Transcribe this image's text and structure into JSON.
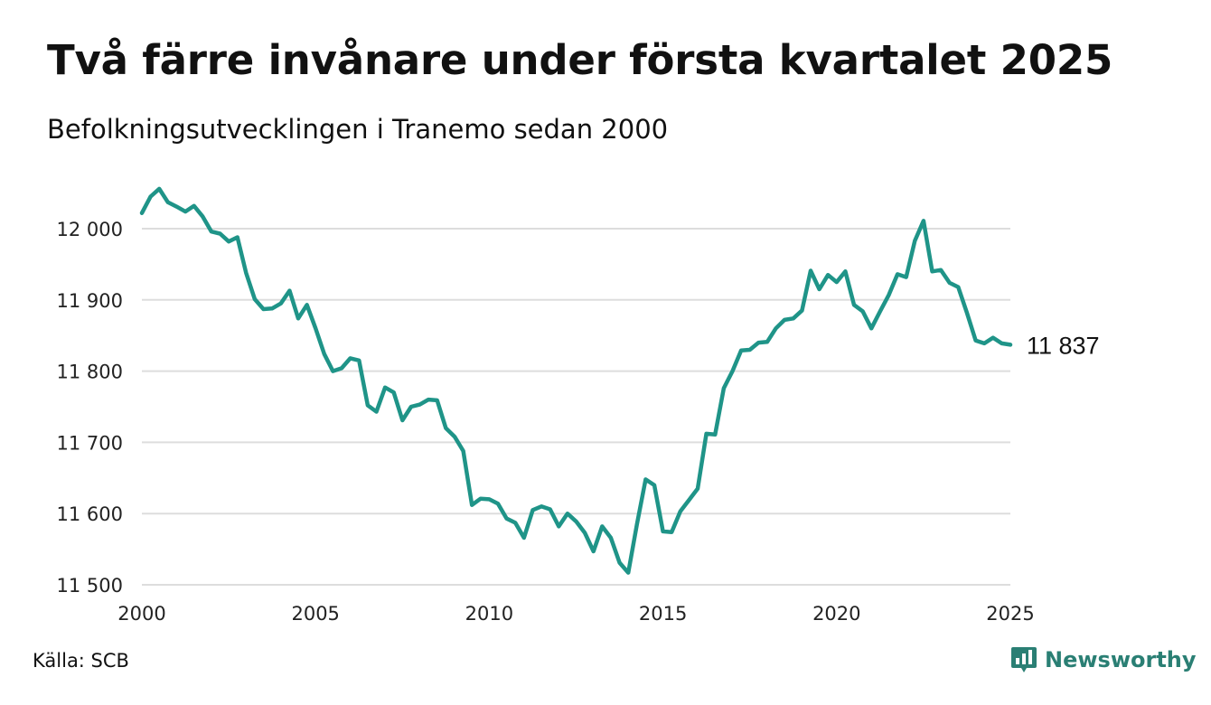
{
  "header": {
    "title": "Två färre invånare under första kvartalet 2025",
    "subtitle": "Befolkningsutvecklingen i Tranemo sedan 2000"
  },
  "footer": {
    "source": "Källa: SCB",
    "brand": "Newsworthy",
    "brand_icon": "bar-chart-speech-bubble-icon"
  },
  "colors": {
    "line": "#1f9488",
    "grid": "#dddddd",
    "brand": "#2a7f74"
  },
  "chart_data": {
    "type": "line",
    "title": "Två färre invånare under första kvartalet 2025",
    "subtitle": "Befolkningsutvecklingen i Tranemo sedan 2000",
    "xlabel": "",
    "ylabel": "",
    "xlim": [
      2000,
      2025
    ],
    "ylim": [
      11500,
      12050
    ],
    "grid": true,
    "legend": "none",
    "x_ticks": [
      2000,
      2005,
      2010,
      2015,
      2020,
      2025
    ],
    "x_tick_labels": [
      "2000",
      "2005",
      "2010",
      "2015",
      "2020",
      "2025"
    ],
    "y_ticks": [
      11500,
      11600,
      11700,
      11800,
      11900,
      12000
    ],
    "y_tick_labels": [
      "11 500",
      "11 600",
      "11 700",
      "11 800",
      "11 900",
      "12 000"
    ],
    "end_label": "11 837",
    "series": [
      {
        "x": [
          2000.0,
          2000.25,
          2000.5,
          2000.75,
          2001.0,
          2001.25,
          2001.5,
          2001.75,
          2002.0,
          2002.25,
          2002.5,
          2002.75,
          2003.0,
          2003.25,
          2003.5,
          2003.75,
          2004.0,
          2004.25,
          2004.5,
          2004.75,
          2005.0,
          2005.25,
          2005.5,
          2005.75,
          2006.0,
          2006.25,
          2006.5,
          2006.75,
          2007.0,
          2007.25,
          2007.5,
          2007.75,
          2008.0,
          2008.25,
          2008.5,
          2008.75,
          2009.0,
          2009.25,
          2009.5,
          2009.75,
          2010.0,
          2010.25,
          2010.5,
          2010.75,
          2011.0,
          2011.25,
          2011.5,
          2011.75,
          2012.0,
          2012.25,
          2012.5,
          2012.75,
          2013.0,
          2013.25,
          2013.5,
          2013.75,
          2014.0,
          2014.25,
          2014.5,
          2014.75,
          2015.0,
          2015.25,
          2015.5,
          2015.75,
          2016.0,
          2016.25,
          2016.5,
          2016.75,
          2017.0,
          2017.25,
          2017.5,
          2017.75,
          2018.0,
          2018.25,
          2018.5,
          2018.75,
          2019.0,
          2019.25,
          2019.5,
          2019.75,
          2020.0,
          2020.25,
          2020.5,
          2020.75,
          2021.0,
          2021.25,
          2021.5,
          2021.75,
          2022.0,
          2022.25,
          2022.5,
          2022.75,
          2023.0,
          2023.25,
          2023.5,
          2023.75,
          2024.0,
          2024.25,
          2024.5,
          2024.75,
          2025.0
        ],
        "values": [
          12022,
          12045,
          12056,
          12037,
          12031,
          12024,
          12032,
          12017,
          11996,
          11993,
          11982,
          11988,
          11938,
          11901,
          11887,
          11888,
          11895,
          11913,
          11874,
          11893,
          11860,
          11824,
          11800,
          11804,
          11818,
          11815,
          11752,
          11743,
          11777,
          11770,
          11731,
          11750,
          11753,
          11760,
          11759,
          11720,
          11708,
          11688,
          11612,
          11621,
          11620,
          11614,
          11593,
          11587,
          11566,
          11605,
          11610,
          11606,
          11582,
          11600,
          11589,
          11573,
          11547,
          11582,
          11566,
          11531,
          11517,
          11585,
          11648,
          11640,
          11575,
          11574,
          11603,
          11619,
          11635,
          11712,
          11711,
          11776,
          11800,
          11829,
          11830,
          11840,
          11841,
          11860,
          11872,
          11874,
          11885,
          11941,
          11915,
          11935,
          11925,
          11940,
          11893,
          11884,
          11860,
          11884,
          11907,
          11936,
          11932,
          11983,
          12011,
          11940,
          11942,
          11924,
          11918,
          11882,
          11843,
          11839,
          11847,
          11839,
          11837
        ]
      }
    ]
  }
}
